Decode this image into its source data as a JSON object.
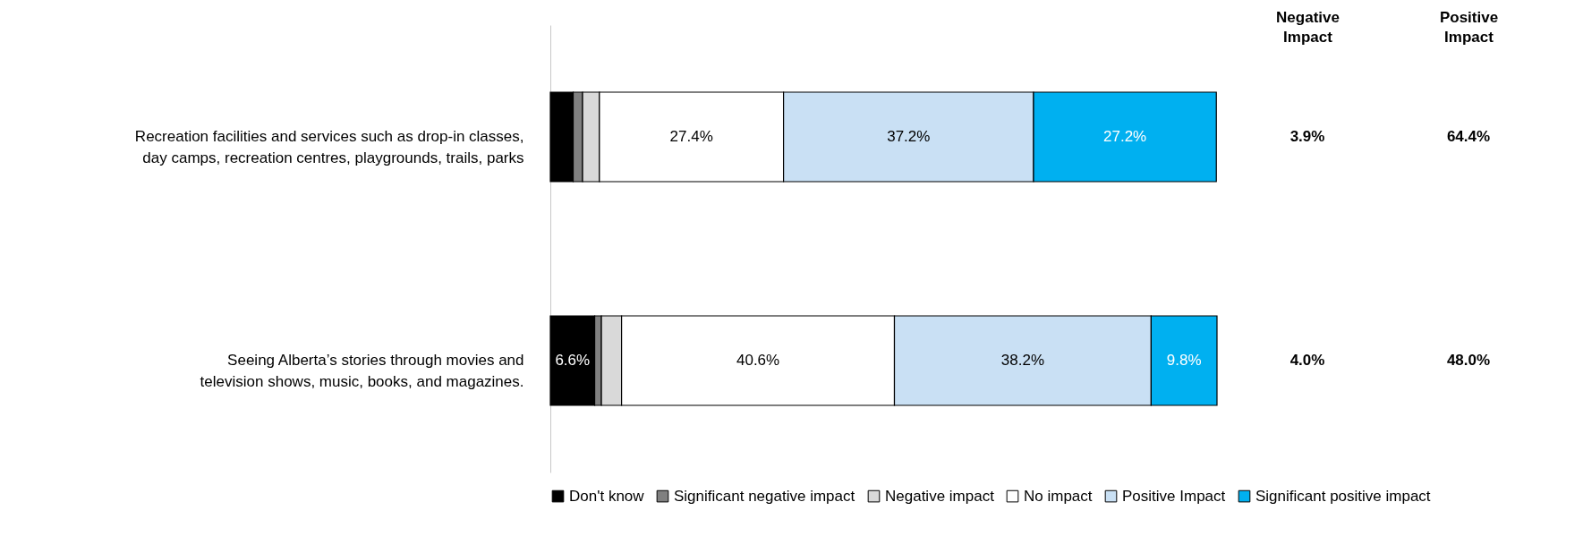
{
  "chart_data": {
    "type": "bar",
    "orientation": "horizontal",
    "stacked": true,
    "legend": "bottom",
    "categories": [
      "Recreation facilities and services such as drop-in classes, day camps, recreation centres, playgrounds, trails, parks",
      "Seeing Alberta’s stories through movies and television shows, music, books, and magazines."
    ],
    "series": [
      {
        "name": "Don't know",
        "color": "#000000",
        "values": [
          3.4,
          6.6
        ],
        "value_labels": [
          null,
          "6.6%"
        ]
      },
      {
        "name": "Significant negative impact",
        "color": "#808080",
        "values": [
          1.4,
          1.0
        ]
      },
      {
        "name": "Negative impact",
        "color": "#d9d9d9",
        "values": [
          2.5,
          3.0
        ]
      },
      {
        "name": "No impact",
        "color": "#ffffff",
        "values": [
          27.4,
          40.6
        ],
        "value_labels": [
          "27.4%",
          "40.6%"
        ]
      },
      {
        "name": "Positive Impact",
        "color": "#c9e0f4",
        "values": [
          37.2,
          38.2
        ],
        "value_labels": [
          "37.2%",
          "38.2%"
        ]
      },
      {
        "name": "Significant positive impact",
        "color": "#00b0f0",
        "values": [
          27.2,
          9.8
        ],
        "value_labels": [
          "27.2%",
          "9.8%"
        ]
      }
    ],
    "annotations": [
      "Negative Impact",
      "Positive Impact",
      "3.9%",
      "64.4%",
      "4.0%",
      "48.0%"
    ]
  }
}
